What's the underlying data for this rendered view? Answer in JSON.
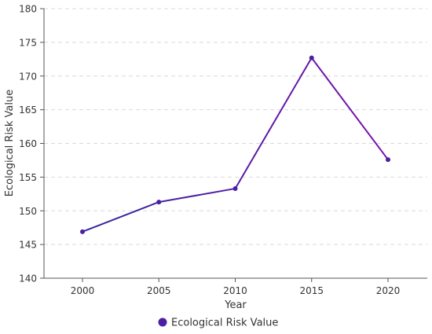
{
  "chart_data": {
    "type": "line",
    "x": [
      "2000",
      "2005",
      "2010",
      "2015",
      "2020"
    ],
    "series": [
      {
        "name": "Ecological Risk Value",
        "values": [
          146.9,
          151.3,
          153.3,
          172.7,
          157.6
        ],
        "color": "#4b1fa3",
        "line_gradient": [
          "#2f2a9e",
          "#7a0fb0"
        ]
      }
    ],
    "xlabel": "Year",
    "ylabel": "Ecological Risk Value",
    "ylim": [
      140,
      180
    ],
    "yticks": [
      140,
      145,
      150,
      155,
      160,
      165,
      170,
      175,
      180
    ],
    "grid": "horizontal dashed",
    "legend": "bottom-center"
  }
}
